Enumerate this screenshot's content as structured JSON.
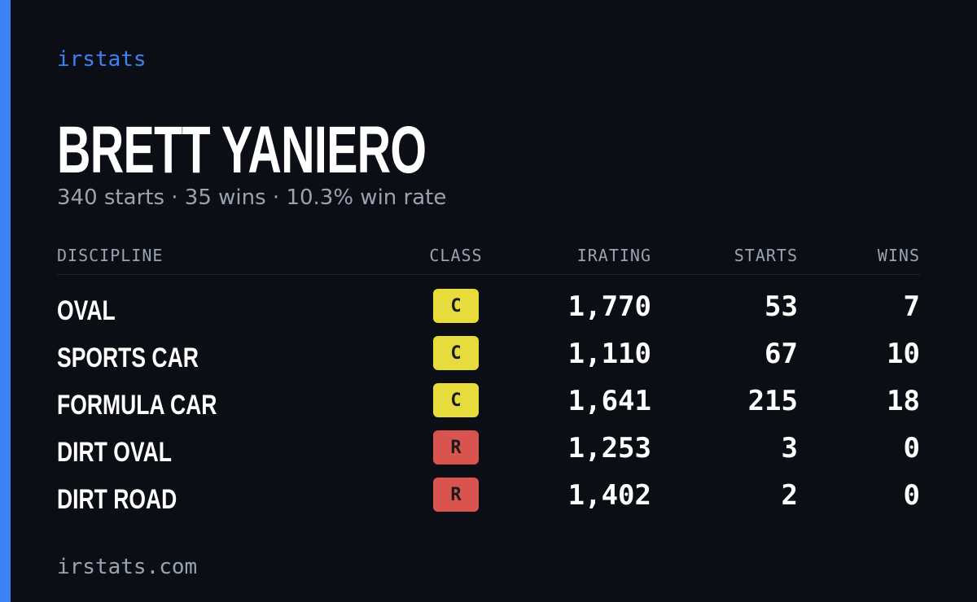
{
  "brand": "irstats",
  "driver": {
    "name": "BRETT YANIERO",
    "summary": "340 starts · 35 wins · 10.3% win rate"
  },
  "table": {
    "headers": [
      "DISCIPLINE",
      "CLASS",
      "IRATING",
      "STARTS",
      "WINS"
    ],
    "rows": [
      {
        "discipline": "OVAL",
        "class": "C",
        "class_color": "#e8dc3c",
        "irating": "1,770",
        "starts": "53",
        "wins": "7"
      },
      {
        "discipline": "SPORTS CAR",
        "class": "C",
        "class_color": "#e8dc3c",
        "irating": "1,110",
        "starts": "67",
        "wins": "10"
      },
      {
        "discipline": "FORMULA CAR",
        "class": "C",
        "class_color": "#e8dc3c",
        "irating": "1,641",
        "starts": "215",
        "wins": "18"
      },
      {
        "discipline": "DIRT OVAL",
        "class": "R",
        "class_color": "#d9534f",
        "irating": "1,253",
        "starts": "3",
        "wins": "0"
      },
      {
        "discipline": "DIRT ROAD",
        "class": "R",
        "class_color": "#d9534f",
        "irating": "1,402",
        "starts": "2",
        "wins": "0"
      }
    ]
  },
  "footer": "irstats.com"
}
